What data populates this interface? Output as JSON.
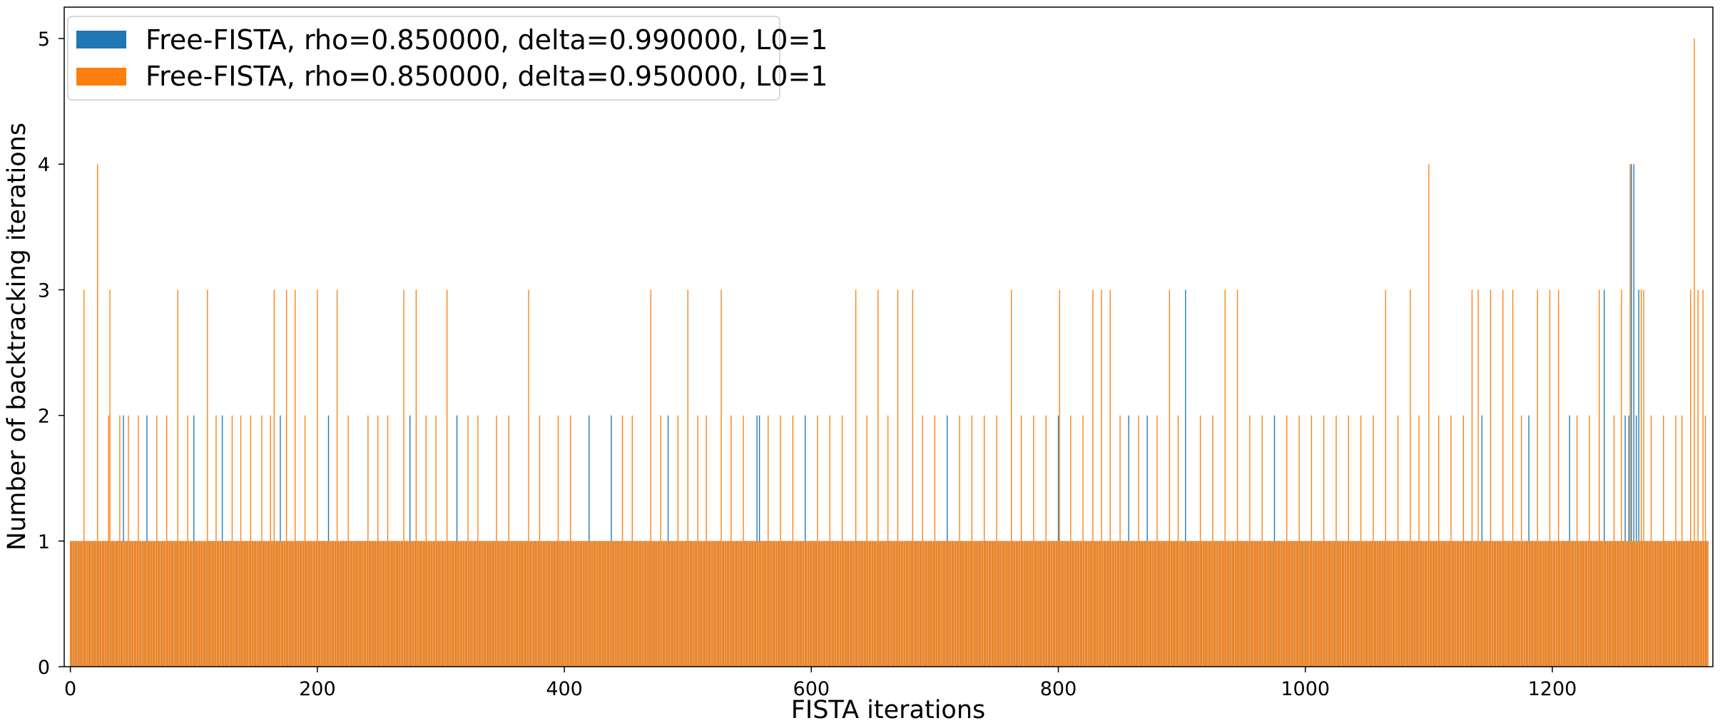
{
  "chart_data": {
    "type": "bar",
    "xlabel": "FISTA iterations",
    "ylabel": "Number of backtracking iterations",
    "xlim": [
      -5,
      1330
    ],
    "ylim": [
      0,
      5.25
    ],
    "x_ticks": [
      0,
      200,
      400,
      600,
      800,
      1000,
      1200
    ],
    "y_ticks": [
      0,
      1,
      2,
      3,
      4,
      5
    ],
    "grid": false,
    "legend_position": "top-left",
    "n_iterations": 1327,
    "baseline_value": 1,
    "series": [
      {
        "name": "Free-FISTA, rho=0.850000, delta=0.990000, L0=1",
        "color": "#1f77b4",
        "default_value": 1,
        "points": [
          {
            "x": 43,
            "y": 2
          },
          {
            "x": 62,
            "y": 2
          },
          {
            "x": 100,
            "y": 2
          },
          {
            "x": 123,
            "y": 2
          },
          {
            "x": 170,
            "y": 2
          },
          {
            "x": 209,
            "y": 2
          },
          {
            "x": 275,
            "y": 2
          },
          {
            "x": 313,
            "y": 2
          },
          {
            "x": 420,
            "y": 2
          },
          {
            "x": 438,
            "y": 2
          },
          {
            "x": 484,
            "y": 2
          },
          {
            "x": 556,
            "y": 2
          },
          {
            "x": 558,
            "y": 2
          },
          {
            "x": 595,
            "y": 2
          },
          {
            "x": 710,
            "y": 2
          },
          {
            "x": 800,
            "y": 2
          },
          {
            "x": 857,
            "y": 2
          },
          {
            "x": 872,
            "y": 2
          },
          {
            "x": 903,
            "y": 3
          },
          {
            "x": 975,
            "y": 2
          },
          {
            "x": 1143,
            "y": 2
          },
          {
            "x": 1181,
            "y": 2
          },
          {
            "x": 1214,
            "y": 2
          },
          {
            "x": 1242,
            "y": 3
          },
          {
            "x": 1259,
            "y": 2
          },
          {
            "x": 1262,
            "y": 2
          },
          {
            "x": 1264,
            "y": 4
          },
          {
            "x": 1266,
            "y": 4
          },
          {
            "x": 1268,
            "y": 2
          },
          {
            "x": 1270,
            "y": 3
          }
        ]
      },
      {
        "name": "Free-FISTA, rho=0.850000, delta=0.950000, L0=1",
        "color": "#ff7f0e",
        "default_value": 1,
        "points": [
          {
            "x": 11,
            "y": 3
          },
          {
            "x": 22,
            "y": 4
          },
          {
            "x": 32,
            "y": 3
          },
          {
            "x": 31,
            "y": 2
          },
          {
            "x": 40,
            "y": 2
          },
          {
            "x": 47,
            "y": 2
          },
          {
            "x": 55,
            "y": 2
          },
          {
            "x": 70,
            "y": 2
          },
          {
            "x": 78,
            "y": 2
          },
          {
            "x": 87,
            "y": 3
          },
          {
            "x": 95,
            "y": 2
          },
          {
            "x": 111,
            "y": 3
          },
          {
            "x": 118,
            "y": 2
          },
          {
            "x": 131,
            "y": 2
          },
          {
            "x": 138,
            "y": 2
          },
          {
            "x": 146,
            "y": 2
          },
          {
            "x": 155,
            "y": 2
          },
          {
            "x": 162,
            "y": 2
          },
          {
            "x": 165,
            "y": 3
          },
          {
            "x": 175,
            "y": 3
          },
          {
            "x": 182,
            "y": 3
          },
          {
            "x": 190,
            "y": 2
          },
          {
            "x": 200,
            "y": 3
          },
          {
            "x": 216,
            "y": 3
          },
          {
            "x": 225,
            "y": 2
          },
          {
            "x": 241,
            "y": 2
          },
          {
            "x": 249,
            "y": 2
          },
          {
            "x": 257,
            "y": 2
          },
          {
            "x": 270,
            "y": 3
          },
          {
            "x": 280,
            "y": 3
          },
          {
            "x": 288,
            "y": 2
          },
          {
            "x": 296,
            "y": 2
          },
          {
            "x": 305,
            "y": 3
          },
          {
            "x": 322,
            "y": 2
          },
          {
            "x": 330,
            "y": 2
          },
          {
            "x": 345,
            "y": 2
          },
          {
            "x": 355,
            "y": 2
          },
          {
            "x": 371,
            "y": 3
          },
          {
            "x": 380,
            "y": 2
          },
          {
            "x": 395,
            "y": 2
          },
          {
            "x": 405,
            "y": 2
          },
          {
            "x": 447,
            "y": 2
          },
          {
            "x": 455,
            "y": 2
          },
          {
            "x": 470,
            "y": 3
          },
          {
            "x": 478,
            "y": 2
          },
          {
            "x": 492,
            "y": 2
          },
          {
            "x": 500,
            "y": 3
          },
          {
            "x": 508,
            "y": 2
          },
          {
            "x": 515,
            "y": 2
          },
          {
            "x": 527,
            "y": 3
          },
          {
            "x": 535,
            "y": 2
          },
          {
            "x": 545,
            "y": 2
          },
          {
            "x": 565,
            "y": 2
          },
          {
            "x": 575,
            "y": 2
          },
          {
            "x": 585,
            "y": 2
          },
          {
            "x": 605,
            "y": 2
          },
          {
            "x": 615,
            "y": 2
          },
          {
            "x": 625,
            "y": 2
          },
          {
            "x": 636,
            "y": 3
          },
          {
            "x": 645,
            "y": 2
          },
          {
            "x": 654,
            "y": 3
          },
          {
            "x": 662,
            "y": 2
          },
          {
            "x": 670,
            "y": 3
          },
          {
            "x": 682,
            "y": 3
          },
          {
            "x": 690,
            "y": 2
          },
          {
            "x": 700,
            "y": 2
          },
          {
            "x": 720,
            "y": 2
          },
          {
            "x": 730,
            "y": 2
          },
          {
            "x": 740,
            "y": 2
          },
          {
            "x": 750,
            "y": 2
          },
          {
            "x": 762,
            "y": 3
          },
          {
            "x": 770,
            "y": 2
          },
          {
            "x": 780,
            "y": 2
          },
          {
            "x": 790,
            "y": 2
          },
          {
            "x": 801,
            "y": 3
          },
          {
            "x": 810,
            "y": 2
          },
          {
            "x": 820,
            "y": 2
          },
          {
            "x": 828,
            "y": 3
          },
          {
            "x": 835,
            "y": 3
          },
          {
            "x": 842,
            "y": 3
          },
          {
            "x": 850,
            "y": 2
          },
          {
            "x": 865,
            "y": 2
          },
          {
            "x": 880,
            "y": 2
          },
          {
            "x": 890,
            "y": 3
          },
          {
            "x": 897,
            "y": 2
          },
          {
            "x": 915,
            "y": 2
          },
          {
            "x": 925,
            "y": 2
          },
          {
            "x": 935,
            "y": 3
          },
          {
            "x": 945,
            "y": 3
          },
          {
            "x": 955,
            "y": 2
          },
          {
            "x": 965,
            "y": 2
          },
          {
            "x": 985,
            "y": 2
          },
          {
            "x": 995,
            "y": 2
          },
          {
            "x": 1005,
            "y": 2
          },
          {
            "x": 1015,
            "y": 2
          },
          {
            "x": 1025,
            "y": 2
          },
          {
            "x": 1035,
            "y": 2
          },
          {
            "x": 1045,
            "y": 2
          },
          {
            "x": 1055,
            "y": 2
          },
          {
            "x": 1065,
            "y": 3
          },
          {
            "x": 1075,
            "y": 2
          },
          {
            "x": 1085,
            "y": 3
          },
          {
            "x": 1092,
            "y": 2
          },
          {
            "x": 1100,
            "y": 4
          },
          {
            "x": 1108,
            "y": 2
          },
          {
            "x": 1118,
            "y": 2
          },
          {
            "x": 1128,
            "y": 2
          },
          {
            "x": 1135,
            "y": 3
          },
          {
            "x": 1140,
            "y": 3
          },
          {
            "x": 1150,
            "y": 3
          },
          {
            "x": 1160,
            "y": 3
          },
          {
            "x": 1168,
            "y": 3
          },
          {
            "x": 1175,
            "y": 2
          },
          {
            "x": 1188,
            "y": 3
          },
          {
            "x": 1198,
            "y": 3
          },
          {
            "x": 1205,
            "y": 3
          },
          {
            "x": 1220,
            "y": 2
          },
          {
            "x": 1230,
            "y": 2
          },
          {
            "x": 1238,
            "y": 3
          },
          {
            "x": 1250,
            "y": 2
          },
          {
            "x": 1256,
            "y": 3
          },
          {
            "x": 1263,
            "y": 4
          },
          {
            "x": 1272,
            "y": 3
          },
          {
            "x": 1274,
            "y": 3
          },
          {
            "x": 1280,
            "y": 2
          },
          {
            "x": 1290,
            "y": 2
          },
          {
            "x": 1300,
            "y": 2
          },
          {
            "x": 1305,
            "y": 2
          },
          {
            "x": 1312,
            "y": 3
          },
          {
            "x": 1315,
            "y": 5
          },
          {
            "x": 1318,
            "y": 3
          },
          {
            "x": 1322,
            "y": 3
          },
          {
            "x": 1324,
            "y": 2
          }
        ]
      }
    ]
  }
}
